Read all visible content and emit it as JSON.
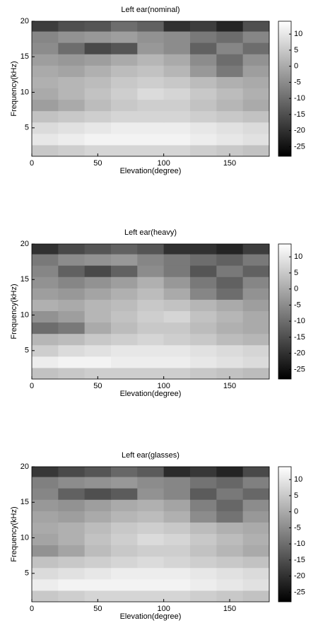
{
  "chart_data": [
    {
      "type": "heatmap",
      "title": "Left ear(nominal)",
      "xlabel": "Elevation(degree)",
      "ylabel": "Frequency(kHz)",
      "x": [
        10,
        30,
        50,
        70,
        90,
        110,
        130,
        150,
        170
      ],
      "y": [
        1.8,
        3.4,
        5,
        6.6,
        8.2,
        9.8,
        11.4,
        13,
        14.6,
        16.2,
        17.8,
        19.4
      ],
      "z": [
        [
          5,
          6,
          7,
          7,
          7,
          7,
          6,
          5,
          4
        ],
        [
          10,
          11,
          12,
          12,
          12,
          12,
          11,
          10,
          9
        ],
        [
          8,
          9,
          10,
          11,
          11,
          11,
          10,
          9,
          8
        ],
        [
          4,
          5,
          6,
          7,
          7,
          7,
          6,
          5,
          4
        ],
        [
          -2,
          0,
          3,
          5,
          6,
          6,
          4,
          2,
          0
        ],
        [
          0,
          2,
          4,
          6,
          8,
          7,
          5,
          3,
          1
        ],
        [
          1,
          2,
          3,
          5,
          6,
          5,
          3,
          1,
          0
        ],
        [
          0,
          -1,
          1,
          3,
          4,
          2,
          -3,
          -8,
          -2
        ],
        [
          -2,
          -3,
          -2,
          0,
          2,
          0,
          -5,
          -10,
          -4
        ],
        [
          -5,
          -10,
          -16,
          -14,
          -3,
          -5,
          -12,
          -6,
          -10
        ],
        [
          -6,
          -4,
          -3,
          -2,
          -4,
          -5,
          -8,
          -10,
          -6
        ],
        [
          -18,
          -15,
          -14,
          -10,
          -12,
          -20,
          -18,
          -22,
          -15
        ]
      ],
      "xlim": [
        0,
        180
      ],
      "ylim": [
        1,
        20
      ],
      "xticks": [
        0,
        50,
        100,
        150
      ],
      "yticks": [
        5,
        10,
        15,
        20
      ],
      "clim": [
        -28,
        14
      ],
      "cticks": [
        10,
        5,
        0,
        -5,
        -10,
        -15,
        -20,
        -25
      ],
      "colormap": "gray"
    },
    {
      "type": "heatmap",
      "title": "Left ear(heavy)",
      "xlabel": "Elevation(degree)",
      "ylabel": "Frequency(kHz)",
      "x": [
        10,
        30,
        50,
        70,
        90,
        110,
        130,
        150,
        170
      ],
      "y": [
        1.8,
        3.4,
        5,
        6.6,
        8.2,
        9.8,
        11.4,
        13,
        14.6,
        16.2,
        17.8,
        19.4
      ],
      "z": [
        [
          4,
          5,
          6,
          6,
          6,
          6,
          5,
          4,
          3
        ],
        [
          11,
          12,
          12,
          11,
          11,
          11,
          10,
          9,
          8
        ],
        [
          6,
          8,
          9,
          10,
          10,
          10,
          9,
          8,
          7
        ],
        [
          2,
          3,
          5,
          6,
          7,
          6,
          5,
          3,
          2
        ],
        [
          -10,
          -8,
          0,
          3,
          5,
          5,
          3,
          1,
          0
        ],
        [
          -4,
          -2,
          2,
          4,
          6,
          7,
          4,
          2,
          0
        ],
        [
          1,
          0,
          2,
          3,
          5,
          4,
          2,
          0,
          -2
        ],
        [
          -2,
          -3,
          -1,
          1,
          3,
          0,
          -6,
          -10,
          -4
        ],
        [
          -4,
          -6,
          -4,
          -2,
          1,
          -3,
          -8,
          -12,
          -6
        ],
        [
          -6,
          -12,
          -16,
          -12,
          -5,
          -8,
          -14,
          -8,
          -12
        ],
        [
          -8,
          -5,
          -4,
          -3,
          -6,
          -8,
          -10,
          -12,
          -8
        ],
        [
          -20,
          -16,
          -14,
          -12,
          -14,
          -20,
          -20,
          -22,
          -18
        ]
      ],
      "xlim": [
        0,
        180
      ],
      "ylim": [
        1,
        20
      ],
      "xticks": [
        0,
        50,
        100,
        150
      ],
      "yticks": [
        5,
        10,
        15,
        20
      ],
      "clim": [
        -28,
        14
      ],
      "cticks": [
        10,
        5,
        0,
        -5,
        -10,
        -15,
        -20,
        -25
      ],
      "colormap": "gray"
    },
    {
      "type": "heatmap",
      "title": "Left ear(glasses)",
      "xlabel": "Elevation(degree)",
      "ylabel": "Frequency(kHz)",
      "x": [
        10,
        30,
        50,
        70,
        90,
        110,
        130,
        150,
        170
      ],
      "y": [
        1.8,
        3.4,
        5,
        6.6,
        8.2,
        9.8,
        11.4,
        13,
        14.6,
        16.2,
        17.8,
        19.4
      ],
      "z": [
        [
          5,
          6,
          7,
          7,
          7,
          7,
          6,
          5,
          4
        ],
        [
          11,
          12,
          12,
          12,
          12,
          12,
          11,
          10,
          9
        ],
        [
          8,
          9,
          10,
          11,
          11,
          11,
          10,
          9,
          8
        ],
        [
          4,
          5,
          6,
          7,
          8,
          7,
          6,
          5,
          4
        ],
        [
          -4,
          -1,
          3,
          5,
          6,
          6,
          4,
          2,
          0
        ],
        [
          -1,
          1,
          4,
          6,
          8,
          7,
          5,
          3,
          1
        ],
        [
          0,
          1,
          3,
          5,
          6,
          5,
          3,
          1,
          0
        ],
        [
          -1,
          -2,
          0,
          2,
          3,
          1,
          -5,
          -9,
          -3
        ],
        [
          -3,
          -4,
          -2,
          0,
          1,
          -1,
          -7,
          -11,
          -5
        ],
        [
          -6,
          -12,
          -15,
          -13,
          -4,
          -6,
          -13,
          -8,
          -11
        ],
        [
          -7,
          -5,
          -4,
          -3,
          -5,
          -6,
          -9,
          -11,
          -7
        ],
        [
          -19,
          -16,
          -14,
          -11,
          -13,
          -21,
          -19,
          -22,
          -16
        ]
      ],
      "xlim": [
        0,
        180
      ],
      "ylim": [
        1,
        20
      ],
      "xticks": [
        0,
        50,
        100,
        150
      ],
      "yticks": [
        5,
        10,
        15,
        20
      ],
      "clim": [
        -28,
        14
      ],
      "cticks": [
        10,
        5,
        0,
        -5,
        -10,
        -15,
        -20,
        -25
      ],
      "colormap": "gray"
    }
  ]
}
